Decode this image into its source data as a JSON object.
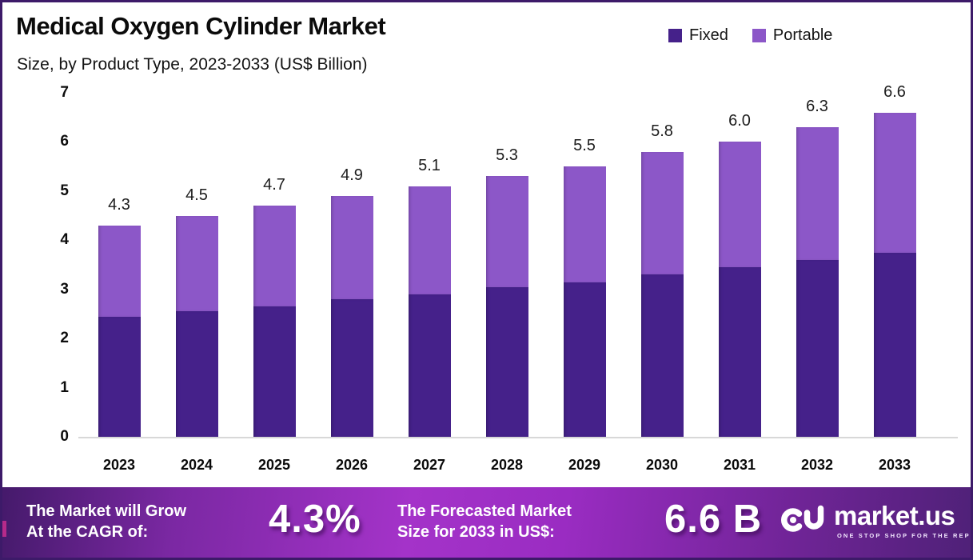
{
  "header": {
    "title": "Medical Oxygen Cylinder Market",
    "subtitle": "Size, by Product Type, 2023-2033 (US$ Billion)"
  },
  "chart_data": {
    "type": "bar",
    "stacked": true,
    "title": "Medical Oxygen Cylinder Market Size, by Product Type, 2023-2033 (US$ Billion)",
    "categories": [
      "2023",
      "2024",
      "2025",
      "2026",
      "2027",
      "2028",
      "2029",
      "2030",
      "2031",
      "2032",
      "2033"
    ],
    "series": [
      {
        "name": "Fixed",
        "color": "#45218a",
        "values": [
          2.45,
          2.55,
          2.65,
          2.8,
          2.9,
          3.05,
          3.15,
          3.3,
          3.45,
          3.6,
          3.75
        ]
      },
      {
        "name": "Portable",
        "color": "#8c57c8",
        "values": [
          1.85,
          1.95,
          2.05,
          2.1,
          2.2,
          2.25,
          2.35,
          2.5,
          2.55,
          2.7,
          2.85
        ]
      }
    ],
    "total_labels": [
      "4.3",
      "4.5",
      "4.7",
      "4.9",
      "5.1",
      "5.3",
      "5.5",
      "5.8",
      "6.0",
      "6.3",
      "6.6"
    ],
    "xlabel": "",
    "ylabel": "",
    "ylim": [
      0,
      7
    ],
    "yticks": [
      0,
      1,
      2,
      3,
      4,
      5,
      6,
      7
    ],
    "grid": false,
    "legend_position": "top-right"
  },
  "footer": {
    "cagr_label_line1": "The Market will Grow",
    "cagr_label_line2": "At the CAGR of:",
    "cagr_value": "4.3%",
    "forecast_label_line1": "The Forecasted Market",
    "forecast_label_line2": "Size for 2033 in US$:",
    "forecast_value": "6.6 B",
    "brand": "market.us",
    "brand_tagline": "ONE STOP SHOP FOR THE REPORTS"
  }
}
